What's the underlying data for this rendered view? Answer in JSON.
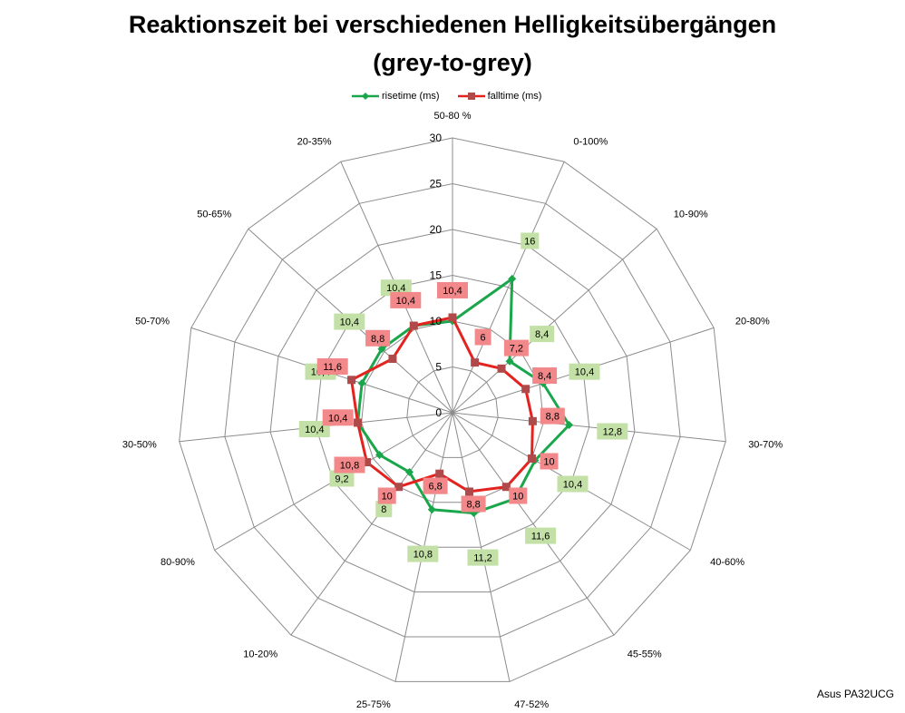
{
  "chart_data": {
    "type": "radar",
    "title": "Reaktionszeit bei verschiedenen Helligkeitsübergängen",
    "subtitle": "(grey-to-grey)",
    "categories": [
      "50-80 %",
      "0-100%",
      "10-90%",
      "20-80%",
      "30-70%",
      "40-60%",
      "45-55%",
      "47-52%",
      "25-75%",
      "10-20%",
      "80-90%",
      "30-50%",
      "50-70%",
      "50-65%",
      "20-35%"
    ],
    "rlim": [
      0,
      30
    ],
    "rticks": [
      0,
      5,
      10,
      15,
      20,
      25,
      30
    ],
    "legend": "top",
    "grid": true,
    "series": [
      {
        "name": "risetime (ms)",
        "color": "#1aa64b",
        "label_bg": "#c3e1a6",
        "values": [
          10,
          16,
          8.4,
          10.4,
          12.8,
          10.4,
          11.6,
          11.2,
          10.8,
          8,
          9.2,
          10.4,
          10.4,
          10.4,
          10.4
        ],
        "labels": [
          "",
          "16",
          "8,4",
          "10,4",
          "12,8",
          "10,4",
          "11,6",
          "11,2",
          "10,8",
          "8",
          "9,2",
          "10,4",
          "10,4",
          "10,4",
          "10,4"
        ]
      },
      {
        "name": "falltime (ms)",
        "color": "#e3231f",
        "label_bg": "#f2888a",
        "values": [
          10.4,
          6,
          7.2,
          8.4,
          8.8,
          10,
          10,
          8.8,
          6.8,
          10,
          10.8,
          10.4,
          11.6,
          8.8,
          10.4
        ],
        "labels": [
          "10,4",
          "6",
          "7,2",
          "8,4",
          "8,8",
          "10",
          "10",
          "8,8",
          "6,8",
          "10",
          "10,8",
          "10,4",
          "11,6",
          "8,8",
          "10,4"
        ]
      }
    ]
  },
  "credit": "Asus PA32UCG"
}
